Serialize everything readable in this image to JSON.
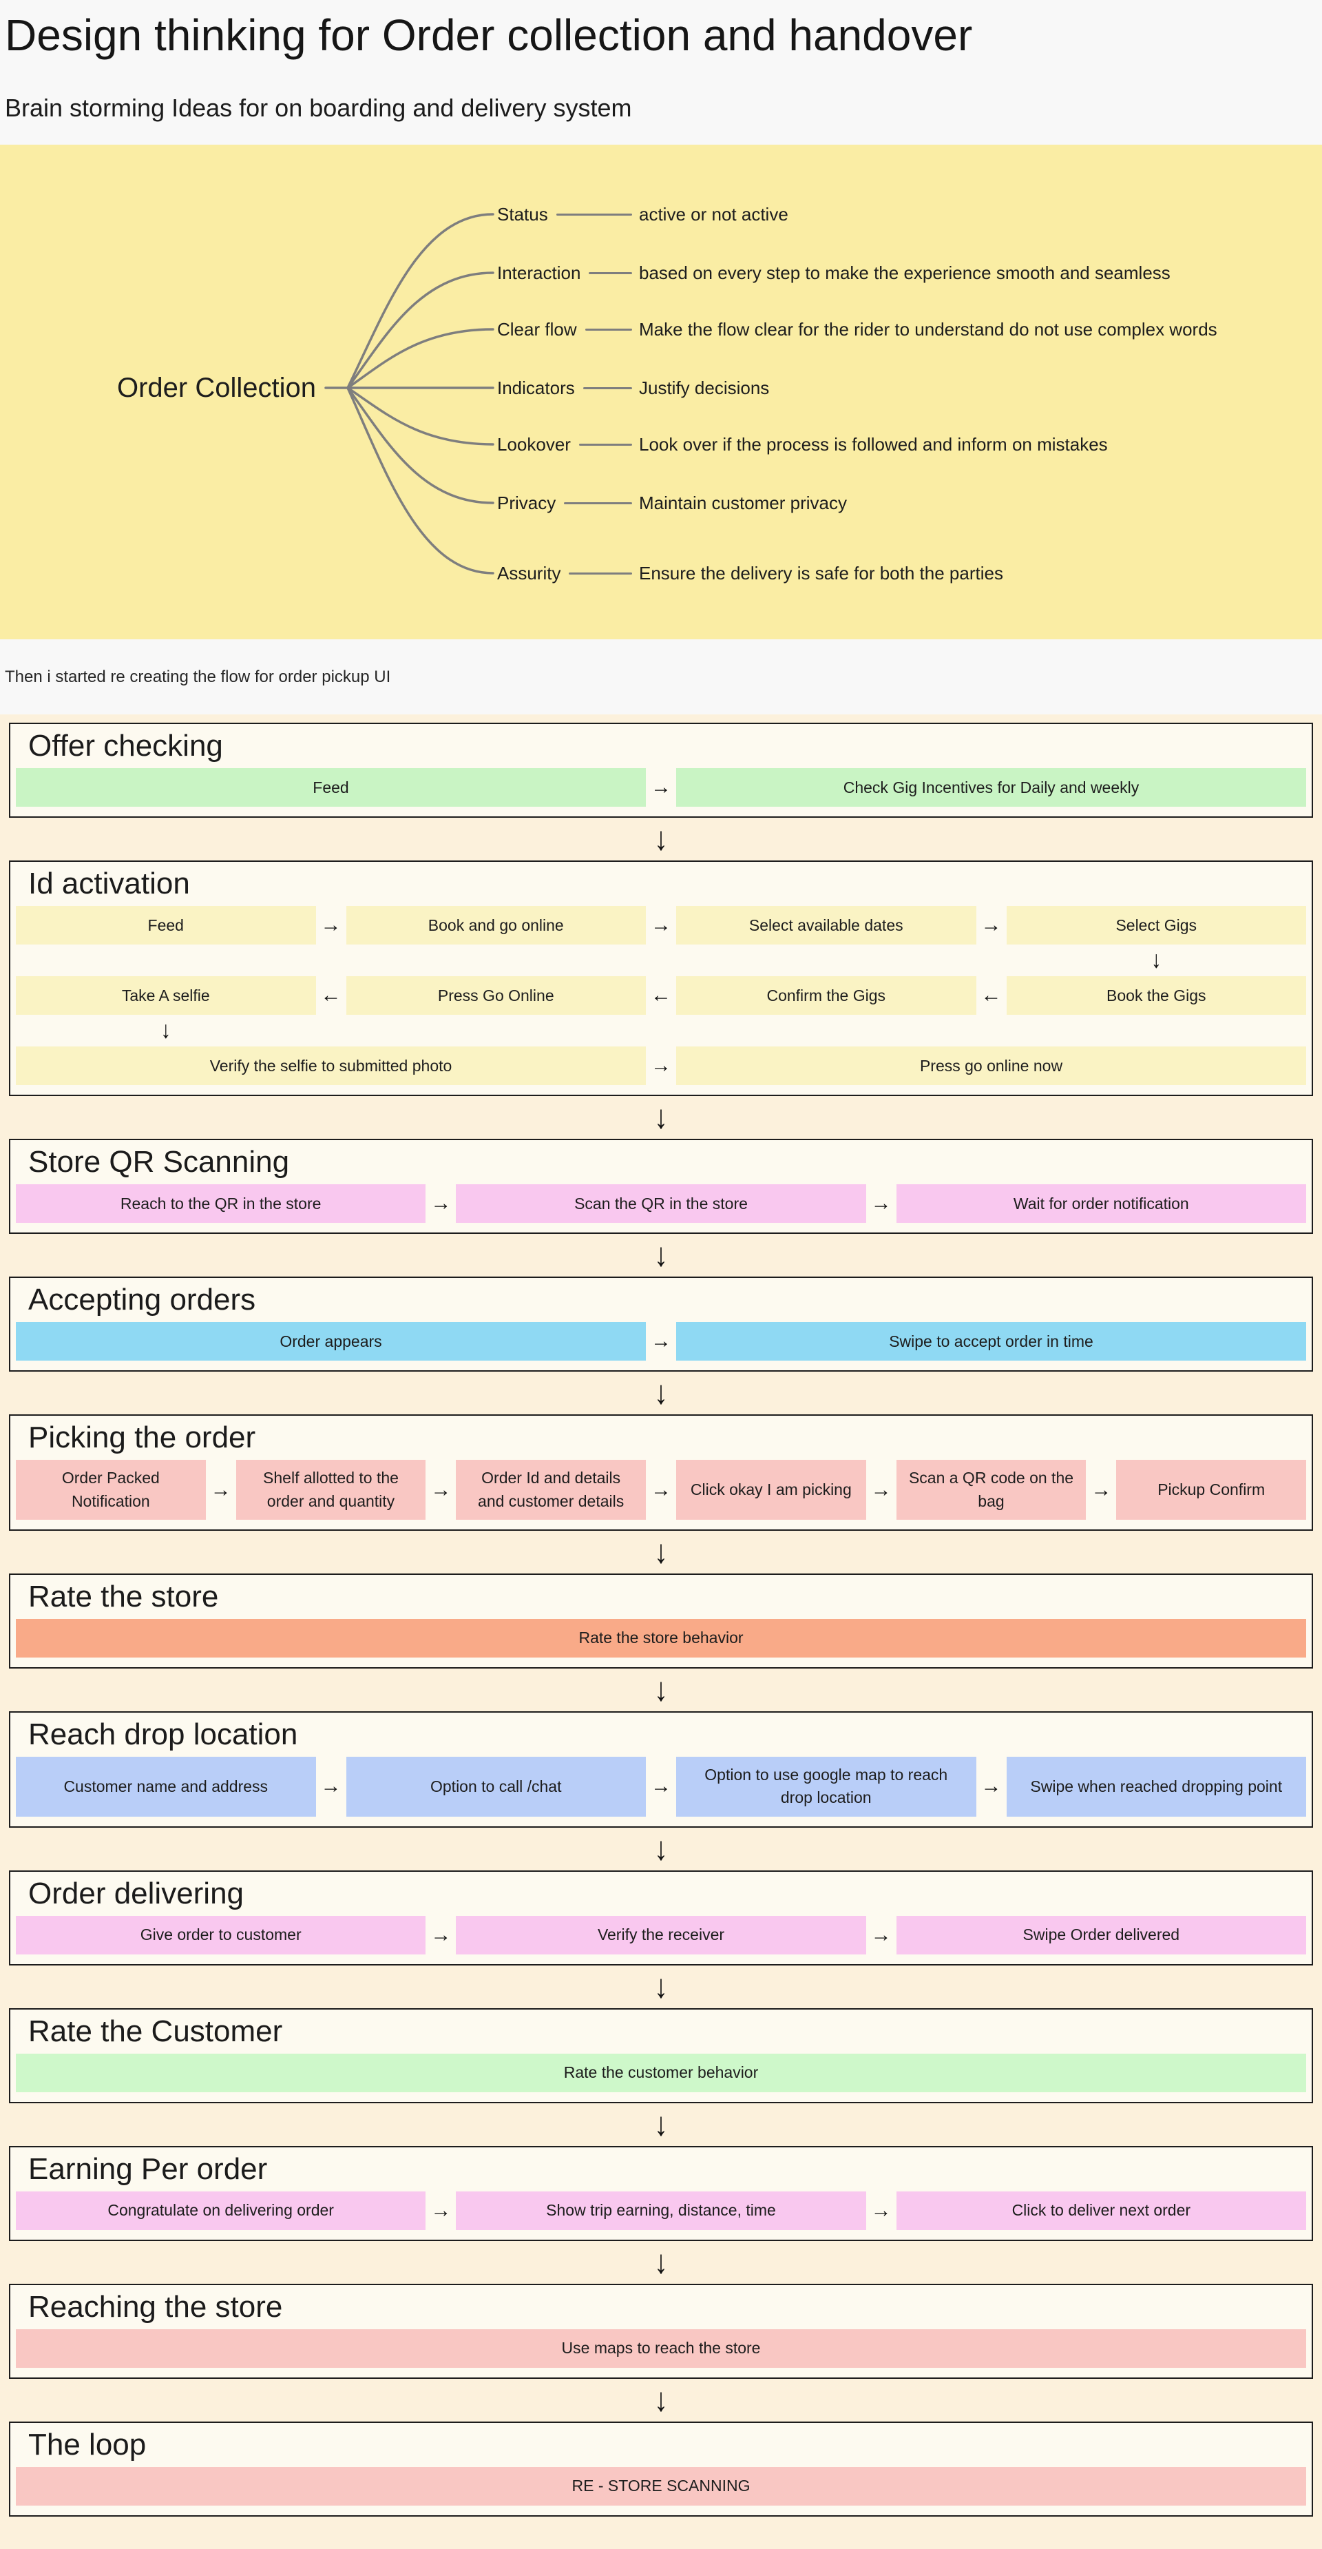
{
  "page": {
    "title": "Design thinking for Order collection and handover",
    "subtitle": "Brain storming Ideas for on boarding and delivery system",
    "flow_intro": "Then i started re creating the flow for order pickup UI"
  },
  "glyphs": {
    "down": "↓"
  },
  "colors": {
    "top_background": "#F8F8F8",
    "mindmap_background": "#FAEDA4",
    "page_background": "#FCF1DC",
    "section_background": "#FDFAF0",
    "section_border": "#1c1c1c",
    "connector_gray": "#7e7e7e"
  },
  "mindmap": {
    "root": "Order Collection",
    "branches": [
      {
        "label": "Status",
        "desc": "active or not active"
      },
      {
        "label": "Interaction",
        "desc": "based on every step to make the experience smooth and seamless"
      },
      {
        "label": "Clear flow",
        "desc": "Make the flow clear for the rider to understand do not use complex words"
      },
      {
        "label": "Indicators",
        "desc": "Justify decisions"
      },
      {
        "label": "Lookover",
        "desc": "Look over if the process is followed and inform on mistakes"
      },
      {
        "label": "Privacy",
        "desc": "Maintain customer privacy"
      },
      {
        "label": "Assurity",
        "desc": "Ensure the delivery is safe for both the parties"
      }
    ]
  },
  "sections": [
    {
      "id": "offer-checking",
      "title": "Offer checking",
      "box_color": "#C9F4C4",
      "rows": [
        {
          "cells": [
            {
              "kind": "box",
              "text": "Feed"
            },
            {
              "kind": "harrow",
              "text": "→"
            },
            {
              "kind": "box",
              "text": "Check Gig Incentives for Daily and weekly"
            }
          ]
        }
      ]
    },
    {
      "id": "id-activation",
      "title": "Id activation",
      "box_color": "#FAF3C4",
      "rows": [
        {
          "cells": [
            {
              "kind": "box",
              "text": "Feed"
            },
            {
              "kind": "harrow",
              "text": "→"
            },
            {
              "kind": "box",
              "text": "Book and go online"
            },
            {
              "kind": "harrow",
              "text": "→"
            },
            {
              "kind": "box",
              "text": "Select available dates"
            },
            {
              "kind": "harrow",
              "text": "→"
            },
            {
              "kind": "box",
              "text": "Select Gigs"
            }
          ]
        },
        {
          "cells": [
            {
              "kind": "vgap"
            },
            {
              "kind": "agap"
            },
            {
              "kind": "vgap"
            },
            {
              "kind": "agap"
            },
            {
              "kind": "vgap"
            },
            {
              "kind": "agap"
            },
            {
              "kind": "varrow",
              "text": "↓"
            }
          ]
        },
        {
          "cells": [
            {
              "kind": "box",
              "text": "Take A selfie"
            },
            {
              "kind": "harrow",
              "text": "←"
            },
            {
              "kind": "box",
              "text": "Press Go Online"
            },
            {
              "kind": "harrow",
              "text": "←"
            },
            {
              "kind": "box",
              "text": "Confirm the Gigs"
            },
            {
              "kind": "harrow",
              "text": "←"
            },
            {
              "kind": "box",
              "text": "Book the Gigs"
            }
          ]
        },
        {
          "cells": [
            {
              "kind": "varrow",
              "text": "↓"
            },
            {
              "kind": "agap"
            },
            {
              "kind": "vgap"
            },
            {
              "kind": "agap"
            },
            {
              "kind": "vgap"
            },
            {
              "kind": "agap"
            },
            {
              "kind": "vgap"
            }
          ]
        },
        {
          "cells": [
            {
              "kind": "box",
              "text": "Verify the selfie to submitted photo"
            },
            {
              "kind": "harrow",
              "text": "→"
            },
            {
              "kind": "box",
              "text": "Press go online now"
            }
          ]
        }
      ]
    },
    {
      "id": "store-qr-scanning",
      "title": "Store QR Scanning",
      "box_color": "#F9C8EF",
      "rows": [
        {
          "cells": [
            {
              "kind": "box",
              "text": "Reach to the QR in the store"
            },
            {
              "kind": "harrow",
              "text": "→"
            },
            {
              "kind": "box",
              "text": "Scan the QR in the store"
            },
            {
              "kind": "harrow",
              "text": "→"
            },
            {
              "kind": "box",
              "text": "Wait for order notification"
            }
          ]
        }
      ]
    },
    {
      "id": "accepting-orders",
      "title": "Accepting orders",
      "box_color": "#8FD9F3",
      "rows": [
        {
          "cells": [
            {
              "kind": "box",
              "text": "Order appears"
            },
            {
              "kind": "harrow",
              "text": "→"
            },
            {
              "kind": "box",
              "text": "Swipe to accept order in time"
            }
          ]
        }
      ]
    },
    {
      "id": "picking-the-order",
      "title": "Picking the order",
      "box_color": "#F9C7C3",
      "rows": [
        {
          "cells": [
            {
              "kind": "box",
              "text": "Order Packed Notification"
            },
            {
              "kind": "harrow",
              "text": "→"
            },
            {
              "kind": "box",
              "text": "Shelf allotted to the order and quantity"
            },
            {
              "kind": "harrow",
              "text": "→"
            },
            {
              "kind": "box",
              "text": "Order Id and details and customer details"
            },
            {
              "kind": "harrow",
              "text": "→"
            },
            {
              "kind": "box",
              "text": "Click okay I am picking"
            },
            {
              "kind": "harrow",
              "text": "→"
            },
            {
              "kind": "box",
              "text": "Scan a QR code on the bag"
            },
            {
              "kind": "harrow",
              "text": "→"
            },
            {
              "kind": "box",
              "text": "Pickup Confirm"
            }
          ]
        }
      ]
    },
    {
      "id": "rate-the-store",
      "title": "Rate the store",
      "box_color": "#F9AA88",
      "rows": [
        {
          "cells": [
            {
              "kind": "box",
              "text": "Rate the store behavior"
            }
          ]
        }
      ]
    },
    {
      "id": "reach-drop-location",
      "title": "Reach drop location",
      "box_color": "#B9CEF8",
      "rows": [
        {
          "cells": [
            {
              "kind": "box",
              "text": "Customer name and address"
            },
            {
              "kind": "harrow",
              "text": "→"
            },
            {
              "kind": "box",
              "text": "Option to call /chat"
            },
            {
              "kind": "harrow",
              "text": "→"
            },
            {
              "kind": "box",
              "text": "Option to use google map to reach drop location"
            },
            {
              "kind": "harrow",
              "text": "→"
            },
            {
              "kind": "box",
              "text": "Swipe when reached dropping point"
            }
          ]
        }
      ]
    },
    {
      "id": "order-delivering",
      "title": "Order delivering",
      "box_color": "#F9C8EF",
      "rows": [
        {
          "cells": [
            {
              "kind": "box",
              "text": "Give order to customer"
            },
            {
              "kind": "harrow",
              "text": "→"
            },
            {
              "kind": "box",
              "text": "Verify the receiver"
            },
            {
              "kind": "harrow",
              "text": "→"
            },
            {
              "kind": "box",
              "text": "Swipe Order delivered"
            }
          ]
        }
      ]
    },
    {
      "id": "rate-the-customer",
      "title": "Rate the Customer",
      "box_color": "#CEF8CA",
      "rows": [
        {
          "cells": [
            {
              "kind": "box",
              "text": "Rate the customer behavior"
            }
          ]
        }
      ]
    },
    {
      "id": "earning-per-order",
      "title": "Earning Per order",
      "box_color": "#F9C8EF",
      "rows": [
        {
          "cells": [
            {
              "kind": "box",
              "text": "Congratulate on delivering order"
            },
            {
              "kind": "harrow",
              "text": "→"
            },
            {
              "kind": "box",
              "text": "Show trip earning, distance, time"
            },
            {
              "kind": "harrow",
              "text": "→"
            },
            {
              "kind": "box",
              "text": "Click to deliver next order"
            }
          ]
        }
      ]
    },
    {
      "id": "reaching-the-store",
      "title": "Reaching the store",
      "box_color": "#F9C7C3",
      "rows": [
        {
          "cells": [
            {
              "kind": "box",
              "text": "Use maps to reach the store"
            }
          ]
        }
      ]
    },
    {
      "id": "the-loop",
      "title": "The loop",
      "box_color": "#F9C7C3",
      "rows": [
        {
          "cells": [
            {
              "kind": "box",
              "text": "RE - STORE SCANNING"
            }
          ]
        }
      ]
    }
  ]
}
